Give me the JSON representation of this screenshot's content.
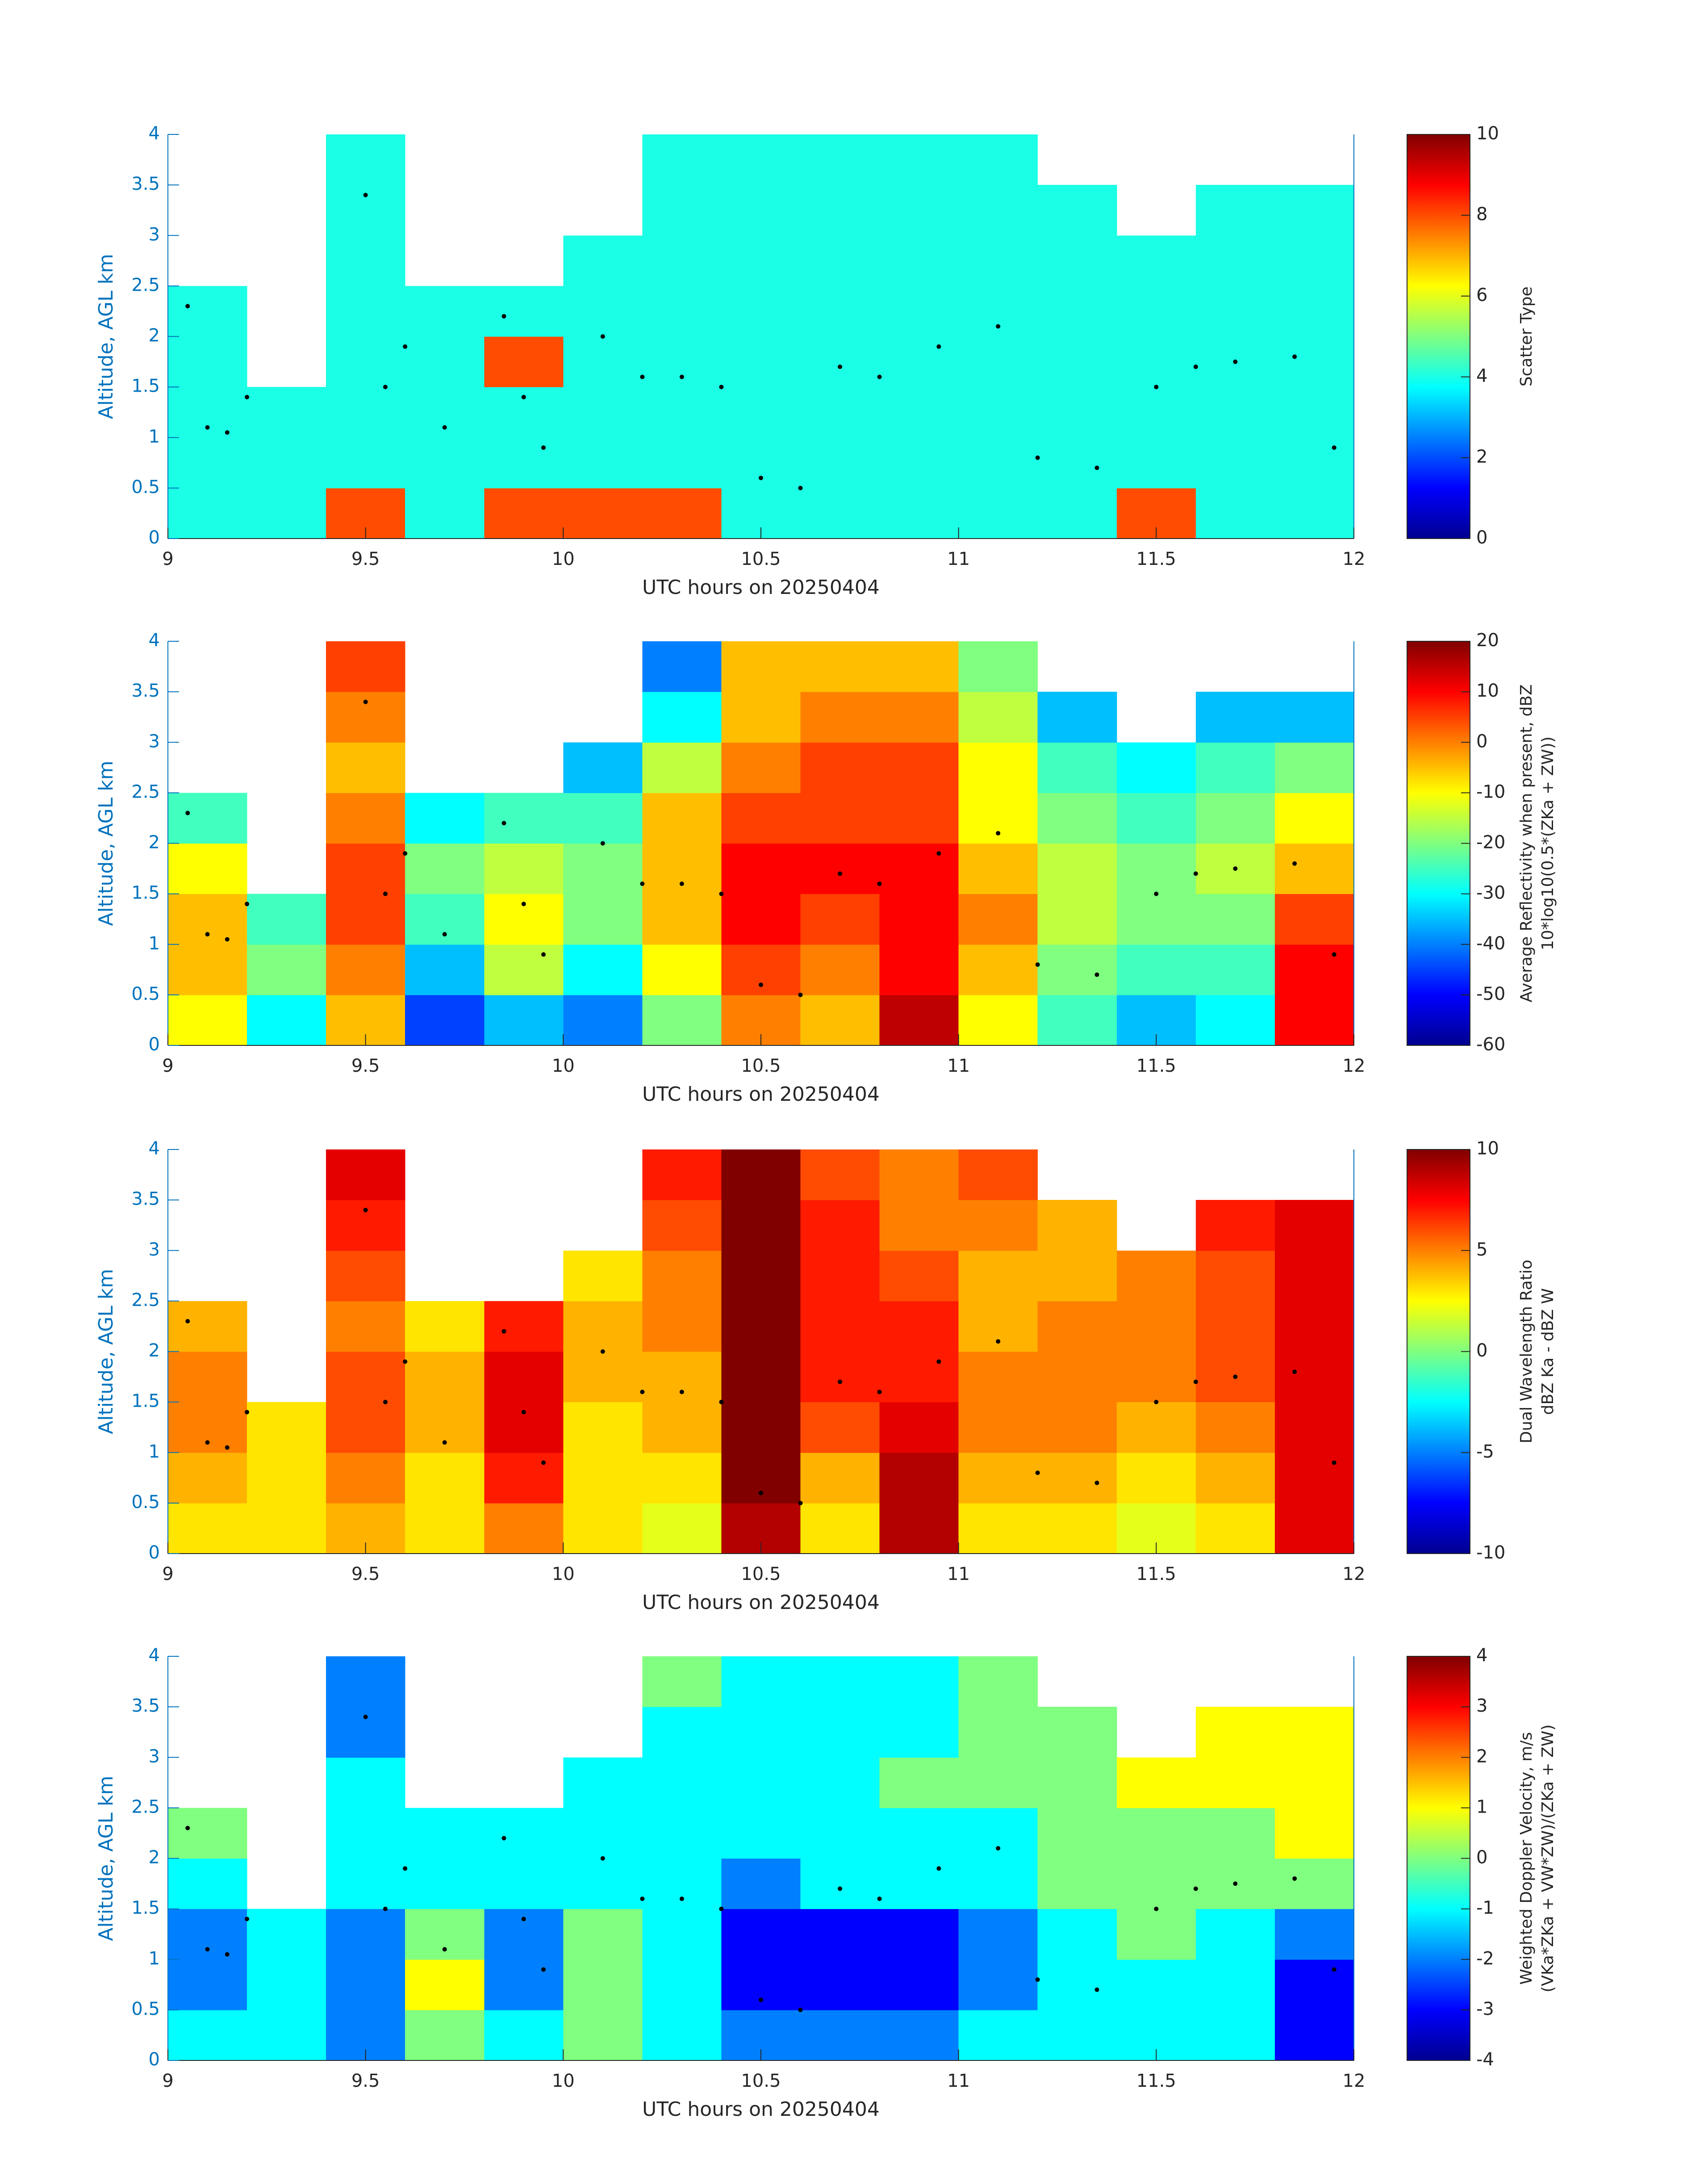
{
  "chart_data": [
    {
      "type": "heatmap",
      "xlabel": "UTC hours on 20250404",
      "ylabel": "Altitude, AGL km",
      "colorbar_label": [
        "Scatter Type"
      ],
      "colormap": "jet",
      "clim": [
        0,
        10
      ],
      "cticks": [
        0,
        2,
        4,
        6,
        8,
        10
      ],
      "xlim": [
        9,
        12
      ],
      "xticks": [
        9,
        9.5,
        10,
        10.5,
        11,
        11.5,
        12
      ],
      "ylim": [
        0,
        4
      ],
      "yticks": [
        0,
        0.5,
        1,
        1.5,
        2,
        2.5,
        3,
        3.5,
        4
      ],
      "x": [
        9.1,
        9.3,
        9.5,
        9.7,
        9.9,
        10.1,
        10.3,
        10.5,
        10.7,
        10.9,
        11.1,
        11.3,
        11.5,
        11.7,
        11.9
      ],
      "y": [
        0.25,
        0.75,
        1.25,
        1.75,
        2.25,
        2.75,
        3.25,
        3.75
      ],
      "values": [
        [
          4,
          4,
          4,
          4,
          4,
          null,
          null,
          null
        ],
        [
          4,
          4,
          4,
          null,
          null,
          null,
          null,
          null
        ],
        [
          8,
          4,
          4,
          4,
          4,
          4,
          4,
          4
        ],
        [
          4,
          4,
          4,
          4,
          4,
          null,
          null,
          null
        ],
        [
          8,
          4,
          4,
          8,
          4,
          null,
          null,
          null
        ],
        [
          8,
          4,
          4,
          4,
          4,
          4,
          null,
          null
        ],
        [
          8,
          4,
          4,
          4,
          4,
          4,
          4,
          4
        ],
        [
          4,
          4,
          4,
          4,
          4,
          4,
          4,
          4
        ],
        [
          4,
          4,
          4,
          4,
          4,
          4,
          4,
          4
        ],
        [
          4,
          4,
          4,
          4,
          4,
          4,
          4,
          4
        ],
        [
          4,
          4,
          4,
          4,
          4,
          4,
          4,
          4
        ],
        [
          4,
          4,
          4,
          4,
          4,
          4,
          4,
          null
        ],
        [
          8,
          4,
          4,
          4,
          4,
          4,
          null,
          null
        ],
        [
          4,
          4,
          4,
          4,
          4,
          4,
          4,
          null
        ],
        [
          4,
          4,
          4,
          4,
          4,
          4,
          4,
          null
        ]
      ],
      "points": {
        "x": [
          9.05,
          9.1,
          9.15,
          9.2,
          9.5,
          9.55,
          9.6,
          9.7,
          9.85,
          9.9,
          9.95,
          10.1,
          10.2,
          10.3,
          10.4,
          10.5,
          10.6,
          10.7,
          10.8,
          10.95,
          11.1,
          11.2,
          11.35,
          11.5,
          11.6,
          11.7,
          11.85,
          11.95
        ],
        "y": [
          2.3,
          1.1,
          1.05,
          1.4,
          3.4,
          1.5,
          1.9,
          1.1,
          2.2,
          1.4,
          0.9,
          2.0,
          1.6,
          1.6,
          1.5,
          0.6,
          0.5,
          1.7,
          1.6,
          1.9,
          2.1,
          0.8,
          0.7,
          1.5,
          1.7,
          1.75,
          1.8,
          0.9
        ]
      }
    },
    {
      "type": "heatmap",
      "xlabel": "UTC hours on 20250404",
      "ylabel": "Altitude, AGL km",
      "colorbar_label": [
        "Average Reflectivity when present, dBZ",
        "10*log10(0.5*(ZKa + ZW))"
      ],
      "colormap": "jet",
      "clim": [
        -60,
        20
      ],
      "cticks": [
        -60,
        -50,
        -40,
        -30,
        -20,
        -10,
        0,
        10,
        20
      ],
      "xlim": [
        9,
        12
      ],
      "xticks": [
        9,
        9.5,
        10,
        10.5,
        11,
        11.5,
        12
      ],
      "ylim": [
        0,
        4
      ],
      "yticks": [
        0,
        0.5,
        1,
        1.5,
        2,
        2.5,
        3,
        3.5,
        4
      ],
      "x": [
        9.1,
        9.3,
        9.5,
        9.7,
        9.9,
        10.1,
        10.3,
        10.5,
        10.7,
        10.9,
        11.1,
        11.3,
        11.5,
        11.7,
        11.9
      ],
      "y": [
        0.25,
        0.75,
        1.25,
        1.75,
        2.25,
        2.75,
        3.25,
        3.75
      ],
      "values": [
        [
          -10,
          -5,
          -5,
          -10,
          -25,
          null,
          null,
          null
        ],
        [
          -30,
          -20,
          -25,
          null,
          null,
          null,
          null,
          null
        ],
        [
          -5,
          0,
          5,
          5,
          0,
          -5,
          0,
          5
        ],
        [
          -45,
          -35,
          -25,
          -20,
          -30,
          null,
          null,
          null
        ],
        [
          -35,
          -15,
          -10,
          -15,
          -25,
          null,
          null,
          null
        ],
        [
          -40,
          -30,
          -20,
          -20,
          -25,
          -35,
          null,
          null
        ],
        [
          -20,
          -10,
          -5,
          -5,
          -5,
          -15,
          -30,
          -40
        ],
        [
          0,
          5,
          10,
          10,
          5,
          0,
          -5,
          -5
        ],
        [
          -5,
          0,
          5,
          10,
          5,
          5,
          0,
          -5
        ],
        [
          15,
          10,
          10,
          10,
          5,
          5,
          0,
          -5
        ],
        [
          -10,
          -5,
          0,
          -5,
          -10,
          -10,
          -15,
          -20
        ],
        [
          -25,
          -20,
          -15,
          -15,
          -20,
          -25,
          -35,
          null
        ],
        [
          -35,
          -25,
          -20,
          -20,
          -25,
          -30,
          null,
          null
        ],
        [
          -30,
          -25,
          -20,
          -15,
          -20,
          -25,
          -35,
          null
        ],
        [
          10,
          10,
          5,
          -5,
          -10,
          -20,
          -35,
          null
        ]
      ],
      "points": {
        "x": [
          9.05,
          9.1,
          9.15,
          9.2,
          9.5,
          9.55,
          9.6,
          9.7,
          9.85,
          9.9,
          9.95,
          10.1,
          10.2,
          10.3,
          10.4,
          10.5,
          10.6,
          10.7,
          10.8,
          10.95,
          11.1,
          11.2,
          11.35,
          11.5,
          11.6,
          11.7,
          11.85,
          11.95
        ],
        "y": [
          2.3,
          1.1,
          1.05,
          1.4,
          3.4,
          1.5,
          1.9,
          1.1,
          2.2,
          1.4,
          0.9,
          2.0,
          1.6,
          1.6,
          1.5,
          0.6,
          0.5,
          1.7,
          1.6,
          1.9,
          2.1,
          0.8,
          0.7,
          1.5,
          1.7,
          1.75,
          1.8,
          0.9
        ]
      }
    },
    {
      "type": "heatmap",
      "xlabel": "UTC hours on 20250404",
      "ylabel": "Altitude, AGL km",
      "colorbar_label": [
        "Dual Wavelength Ratio",
        "dBZ Ka - dBZ W"
      ],
      "colormap": "jet",
      "clim": [
        -10,
        10
      ],
      "cticks": [
        -10,
        -5,
        0,
        5,
        10
      ],
      "xlim": [
        9,
        12
      ],
      "xticks": [
        9,
        9.5,
        10,
        10.5,
        11,
        11.5,
        12
      ],
      "ylim": [
        0,
        4
      ],
      "yticks": [
        0,
        0.5,
        1,
        1.5,
        2,
        2.5,
        3,
        3.5,
        4
      ],
      "x": [
        9.1,
        9.3,
        9.5,
        9.7,
        9.9,
        10.1,
        10.3,
        10.5,
        10.7,
        10.9,
        11.1,
        11.3,
        11.5,
        11.7,
        11.9
      ],
      "y": [
        0.25,
        0.75,
        1.25,
        1.75,
        2.25,
        2.75,
        3.25,
        3.75
      ],
      "values": [
        [
          3,
          4,
          5,
          5,
          4,
          null,
          null,
          null
        ],
        [
          3,
          3,
          3,
          null,
          null,
          null,
          null,
          null
        ],
        [
          4,
          5,
          6,
          6,
          5,
          6,
          7,
          8
        ],
        [
          3,
          3,
          4,
          4,
          3,
          null,
          null,
          null
        ],
        [
          5,
          7,
          8,
          8,
          7,
          null,
          null,
          null
        ],
        [
          3,
          3,
          3,
          4,
          4,
          3,
          null,
          null
        ],
        [
          2,
          3,
          4,
          4,
          5,
          5,
          6,
          7
        ],
        [
          9,
          10,
          10,
          10,
          10,
          10,
          10,
          10
        ],
        [
          3,
          4,
          6,
          7,
          7,
          7,
          7,
          6
        ],
        [
          9,
          9,
          8,
          7,
          7,
          6,
          5,
          5
        ],
        [
          3,
          4,
          5,
          5,
          4,
          4,
          5,
          6
        ],
        [
          3,
          4,
          5,
          5,
          5,
          4,
          4,
          null
        ],
        [
          2,
          3,
          4,
          5,
          5,
          5,
          null,
          null
        ],
        [
          3,
          4,
          5,
          6,
          6,
          6,
          7,
          null
        ],
        [
          8,
          8,
          8,
          8,
          8,
          8,
          8,
          null
        ]
      ],
      "points": {
        "x": [
          9.05,
          9.1,
          9.15,
          9.2,
          9.5,
          9.55,
          9.6,
          9.7,
          9.85,
          9.9,
          9.95,
          10.1,
          10.2,
          10.3,
          10.4,
          10.5,
          10.6,
          10.7,
          10.8,
          10.95,
          11.1,
          11.2,
          11.35,
          11.5,
          11.6,
          11.7,
          11.85,
          11.95
        ],
        "y": [
          2.3,
          1.1,
          1.05,
          1.4,
          3.4,
          1.5,
          1.9,
          1.1,
          2.2,
          1.4,
          0.9,
          2.0,
          1.6,
          1.6,
          1.5,
          0.6,
          0.5,
          1.7,
          1.6,
          1.9,
          2.1,
          0.8,
          0.7,
          1.5,
          1.7,
          1.75,
          1.8,
          0.9
        ]
      }
    },
    {
      "type": "heatmap",
      "xlabel": "UTC hours on 20250404",
      "ylabel": "Altitude, AGL km",
      "colorbar_label": [
        "Weighted Doppler Velocity, m/s",
        "(VKa*ZKa + VW*ZW)/(ZKa + ZW)"
      ],
      "colormap": "jet",
      "clim": [
        -4,
        4
      ],
      "cticks": [
        -4,
        -3,
        -2,
        -1,
        0,
        1,
        2,
        3,
        4
      ],
      "xlim": [
        9,
        12
      ],
      "xticks": [
        9,
        9.5,
        10,
        10.5,
        11,
        11.5,
        12
      ],
      "ylim": [
        0,
        4
      ],
      "yticks": [
        0,
        0.5,
        1,
        1.5,
        2,
        2.5,
        3,
        3.5,
        4
      ],
      "x": [
        9.1,
        9.3,
        9.5,
        9.7,
        9.9,
        10.1,
        10.3,
        10.5,
        10.7,
        10.9,
        11.1,
        11.3,
        11.5,
        11.7,
        11.9
      ],
      "y": [
        0.25,
        0.75,
        1.25,
        1.75,
        2.25,
        2.75,
        3.25,
        3.75
      ],
      "values": [
        [
          -1,
          -2,
          -2,
          -1,
          0,
          null,
          null,
          null
        ],
        [
          -1,
          -1,
          -1,
          null,
          null,
          null,
          null,
          null
        ],
        [
          -2,
          -2,
          -2,
          -1,
          -1,
          -1,
          -2,
          -2
        ],
        [
          0,
          1,
          0,
          -1,
          -1,
          null,
          null,
          null
        ],
        [
          -1,
          -2,
          -2,
          -1,
          -1,
          null,
          null,
          null
        ],
        [
          0,
          0,
          0,
          -1,
          -1,
          -1,
          null,
          null
        ],
        [
          -1,
          -1,
          -1,
          -1,
          -1,
          -1,
          -1,
          0
        ],
        [
          -2,
          -3,
          -3,
          -2,
          -1,
          -1,
          -1,
          -1
        ],
        [
          -2,
          -3,
          -3,
          -1,
          -1,
          -1,
          -1,
          -1
        ],
        [
          -2,
          -3,
          -3,
          -1,
          -1,
          0,
          -1,
          -1
        ],
        [
          -1,
          -2,
          -2,
          -1,
          -1,
          0,
          0,
          0
        ],
        [
          -1,
          -1,
          -1,
          0,
          0,
          0,
          0,
          null
        ],
        [
          -1,
          -1,
          0,
          0,
          0,
          1,
          null,
          null
        ],
        [
          -1,
          -1,
          -1,
          0,
          0,
          1,
          1,
          null
        ],
        [
          -3,
          -3,
          -2,
          0,
          1,
          1,
          1,
          null
        ]
      ],
      "points": {
        "x": [
          9.05,
          9.1,
          9.15,
          9.2,
          9.5,
          9.55,
          9.6,
          9.7,
          9.85,
          9.9,
          9.95,
          10.1,
          10.2,
          10.3,
          10.4,
          10.5,
          10.6,
          10.7,
          10.8,
          10.95,
          11.1,
          11.2,
          11.35,
          11.5,
          11.6,
          11.7,
          11.85,
          11.95
        ],
        "y": [
          2.3,
          1.1,
          1.05,
          1.4,
          3.4,
          1.5,
          1.9,
          1.1,
          2.2,
          1.4,
          0.9,
          2.0,
          1.6,
          1.6,
          1.5,
          0.6,
          0.5,
          1.7,
          1.6,
          1.9,
          2.1,
          0.8,
          0.7,
          1.5,
          1.7,
          1.75,
          1.8,
          0.9
        ]
      }
    }
  ]
}
